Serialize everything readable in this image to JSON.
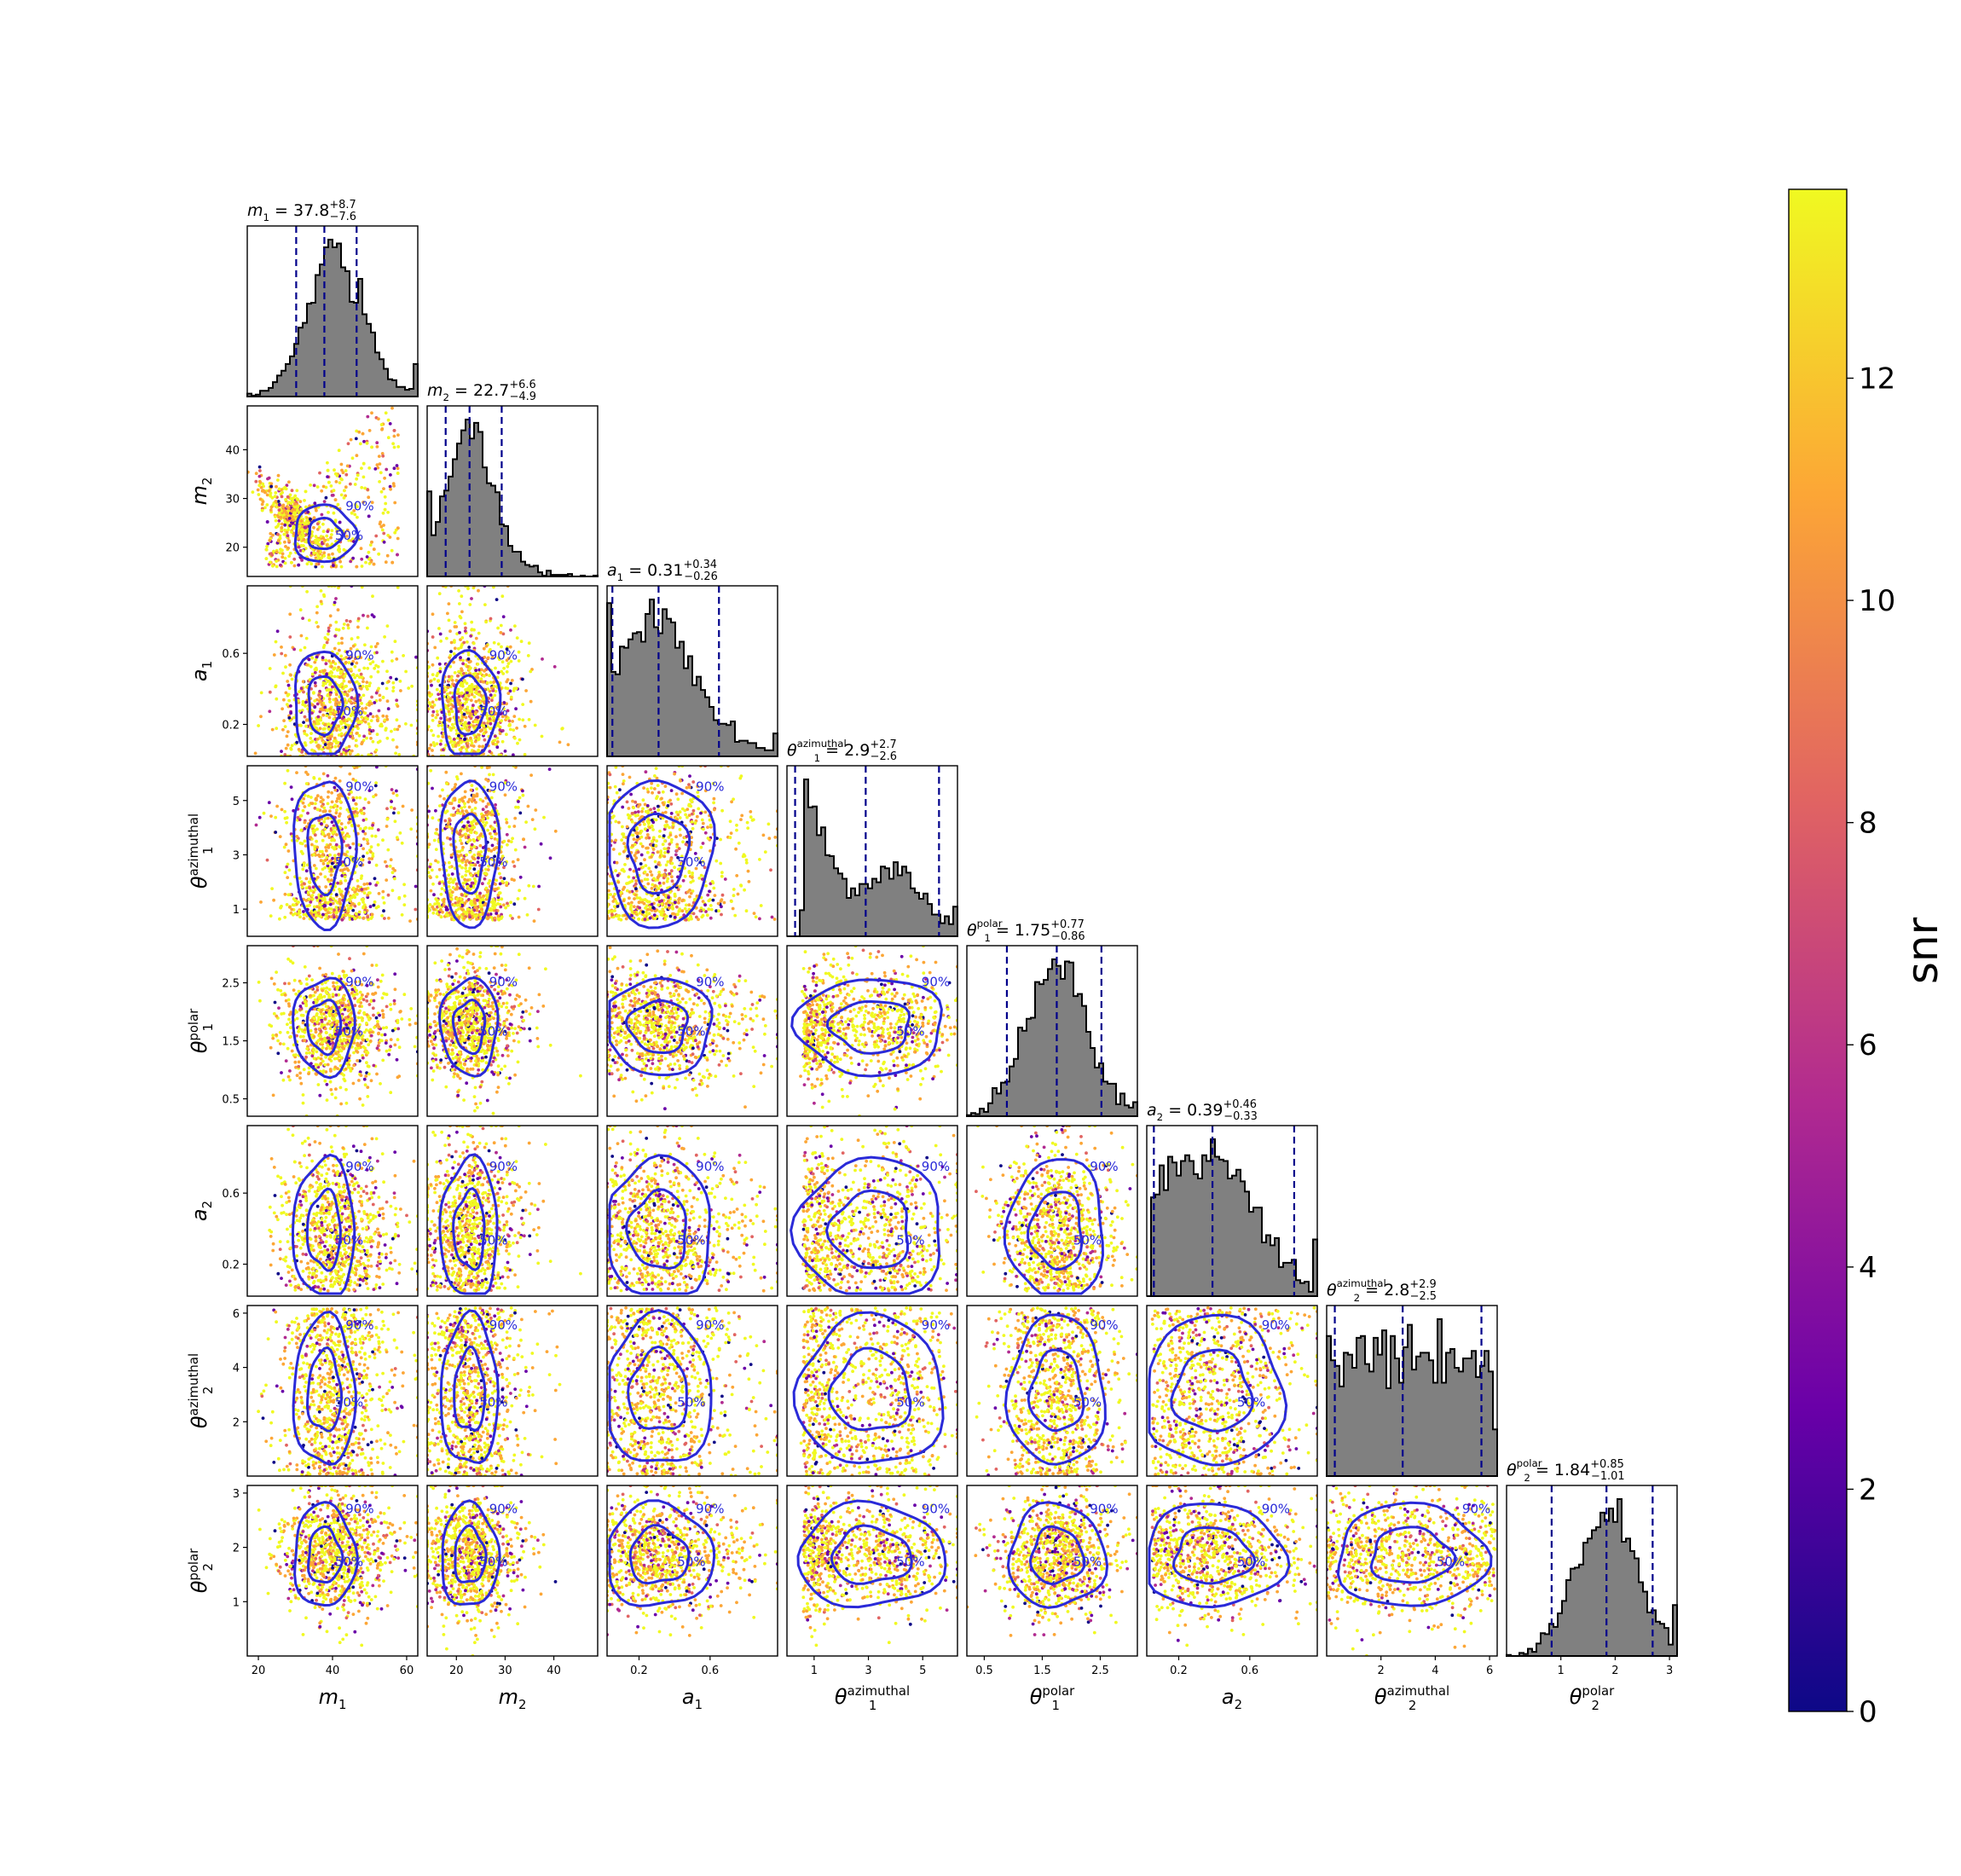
{
  "figure_type": "corner-plot",
  "chart_data": {
    "type": "corner",
    "parameters": [
      {
        "key": "m1",
        "label": "m",
        "sub": "1",
        "sup": "",
        "range": [
          17,
          63
        ],
        "ticks": [
          20,
          40,
          60
        ],
        "title": {
          "sym": "m",
          "sub": "1",
          "sup": "",
          "value": "37.8",
          "plus": "+8.7",
          "minus": "−7.6"
        },
        "quantiles": [
          30.2,
          37.8,
          46.5
        ],
        "mode": [
          40,
          7
        ],
        "hist_extra": "tail"
      },
      {
        "key": "m2",
        "label": "m",
        "sub": "2",
        "sup": "",
        "range": [
          14,
          49
        ],
        "ticks": [
          20,
          30,
          40
        ],
        "title": {
          "sym": "m",
          "sub": "2",
          "sup": "",
          "value": "22.7",
          "plus": "+6.6",
          "minus": "−4.9"
        },
        "quantiles": [
          17.8,
          22.7,
          29.3
        ],
        "mode": [
          22.5,
          4.5
        ],
        "hist_extra": "tail"
      },
      {
        "key": "a1",
        "label": "a",
        "sub": "1",
        "sup": "",
        "range": [
          0.02,
          0.98
        ],
        "ticks": [
          0.2,
          0.6
        ],
        "title": {
          "sym": "a",
          "sub": "1",
          "sup": "",
          "value": "0.31",
          "plus": "+0.34",
          "minus": "−0.26"
        },
        "quantiles": [
          0.05,
          0.31,
          0.65
        ],
        "mode": [
          0.28,
          0.18
        ],
        "hist_extra": "skew"
      },
      {
        "key": "t1az",
        "label": "θ",
        "sub": "1",
        "sup": "azimuthal",
        "range": [
          0,
          6.28
        ],
        "ticks": [
          1,
          3,
          5
        ],
        "title": {
          "sym": "θ",
          "sub": "1",
          "sup": "azimuthal",
          "value": "2.9",
          "plus": "+2.7",
          "minus": "−2.6"
        },
        "quantiles": [
          0.3,
          2.9,
          5.6
        ],
        "mode": [
          0,
          0
        ],
        "hist_extra": "bimodal"
      },
      {
        "key": "t1pol",
        "label": "θ",
        "sub": "1",
        "sup": "polar",
        "range": [
          0.2,
          3.14
        ],
        "ticks": [
          0.5,
          1.5,
          2.5
        ],
        "title": {
          "sym": "θ",
          "sub": "1",
          "sup": "polar",
          "value": "1.75",
          "plus": "+0.77",
          "minus": "−0.86"
        },
        "quantiles": [
          0.89,
          1.75,
          2.52
        ],
        "mode": [
          1.75,
          0.5
        ],
        "hist_extra": "none"
      },
      {
        "key": "a2",
        "label": "a",
        "sub": "2",
        "sup": "",
        "range": [
          0.02,
          0.98
        ],
        "ticks": [
          0.2,
          0.6
        ],
        "title": {
          "sym": "a",
          "sub": "2",
          "sup": "",
          "value": "0.39",
          "plus": "+0.46",
          "minus": "−0.33"
        },
        "quantiles": [
          0.06,
          0.39,
          0.85
        ],
        "mode": [
          0.38,
          0.25
        ],
        "hist_extra": "broad"
      },
      {
        "key": "t2az",
        "label": "θ",
        "sub": "2",
        "sup": "azimuthal",
        "range": [
          0,
          6.28
        ],
        "ticks": [
          2,
          4,
          6
        ],
        "title": {
          "sym": "θ",
          "sub": "2",
          "sup": "azimuthal",
          "value": "2.8",
          "plus": "+2.9",
          "minus": "−2.5"
        },
        "quantiles": [
          0.3,
          2.8,
          5.7
        ],
        "mode": [
          0,
          0
        ],
        "hist_extra": "flat"
      },
      {
        "key": "t2pol",
        "label": "θ",
        "sub": "2",
        "sup": "polar",
        "range": [
          0.0,
          3.14
        ],
        "ticks": [
          1,
          2,
          3
        ],
        "title": {
          "sym": "θ",
          "sub": "2",
          "sup": "polar",
          "value": "1.84",
          "plus": "+0.85",
          "minus": "−1.01"
        },
        "quantiles": [
          0.83,
          1.84,
          2.69
        ],
        "mode": [
          1.85,
          0.55
        ],
        "hist_extra": "none"
      }
    ],
    "contour_levels": [
      "50%",
      "90%"
    ],
    "colorbar": {
      "label": "snr",
      "min": 0,
      "max": 13.7,
      "ticks": [
        0,
        2,
        4,
        6,
        8,
        10,
        12
      ],
      "colormap": [
        "#0d0887",
        "#6a00a8",
        "#b12a90",
        "#e16462",
        "#fca636",
        "#f0f921"
      ]
    },
    "colors": {
      "hist_fill": "#808080",
      "quantile_line": "#00008b",
      "contour": "#2a2ad8"
    }
  }
}
